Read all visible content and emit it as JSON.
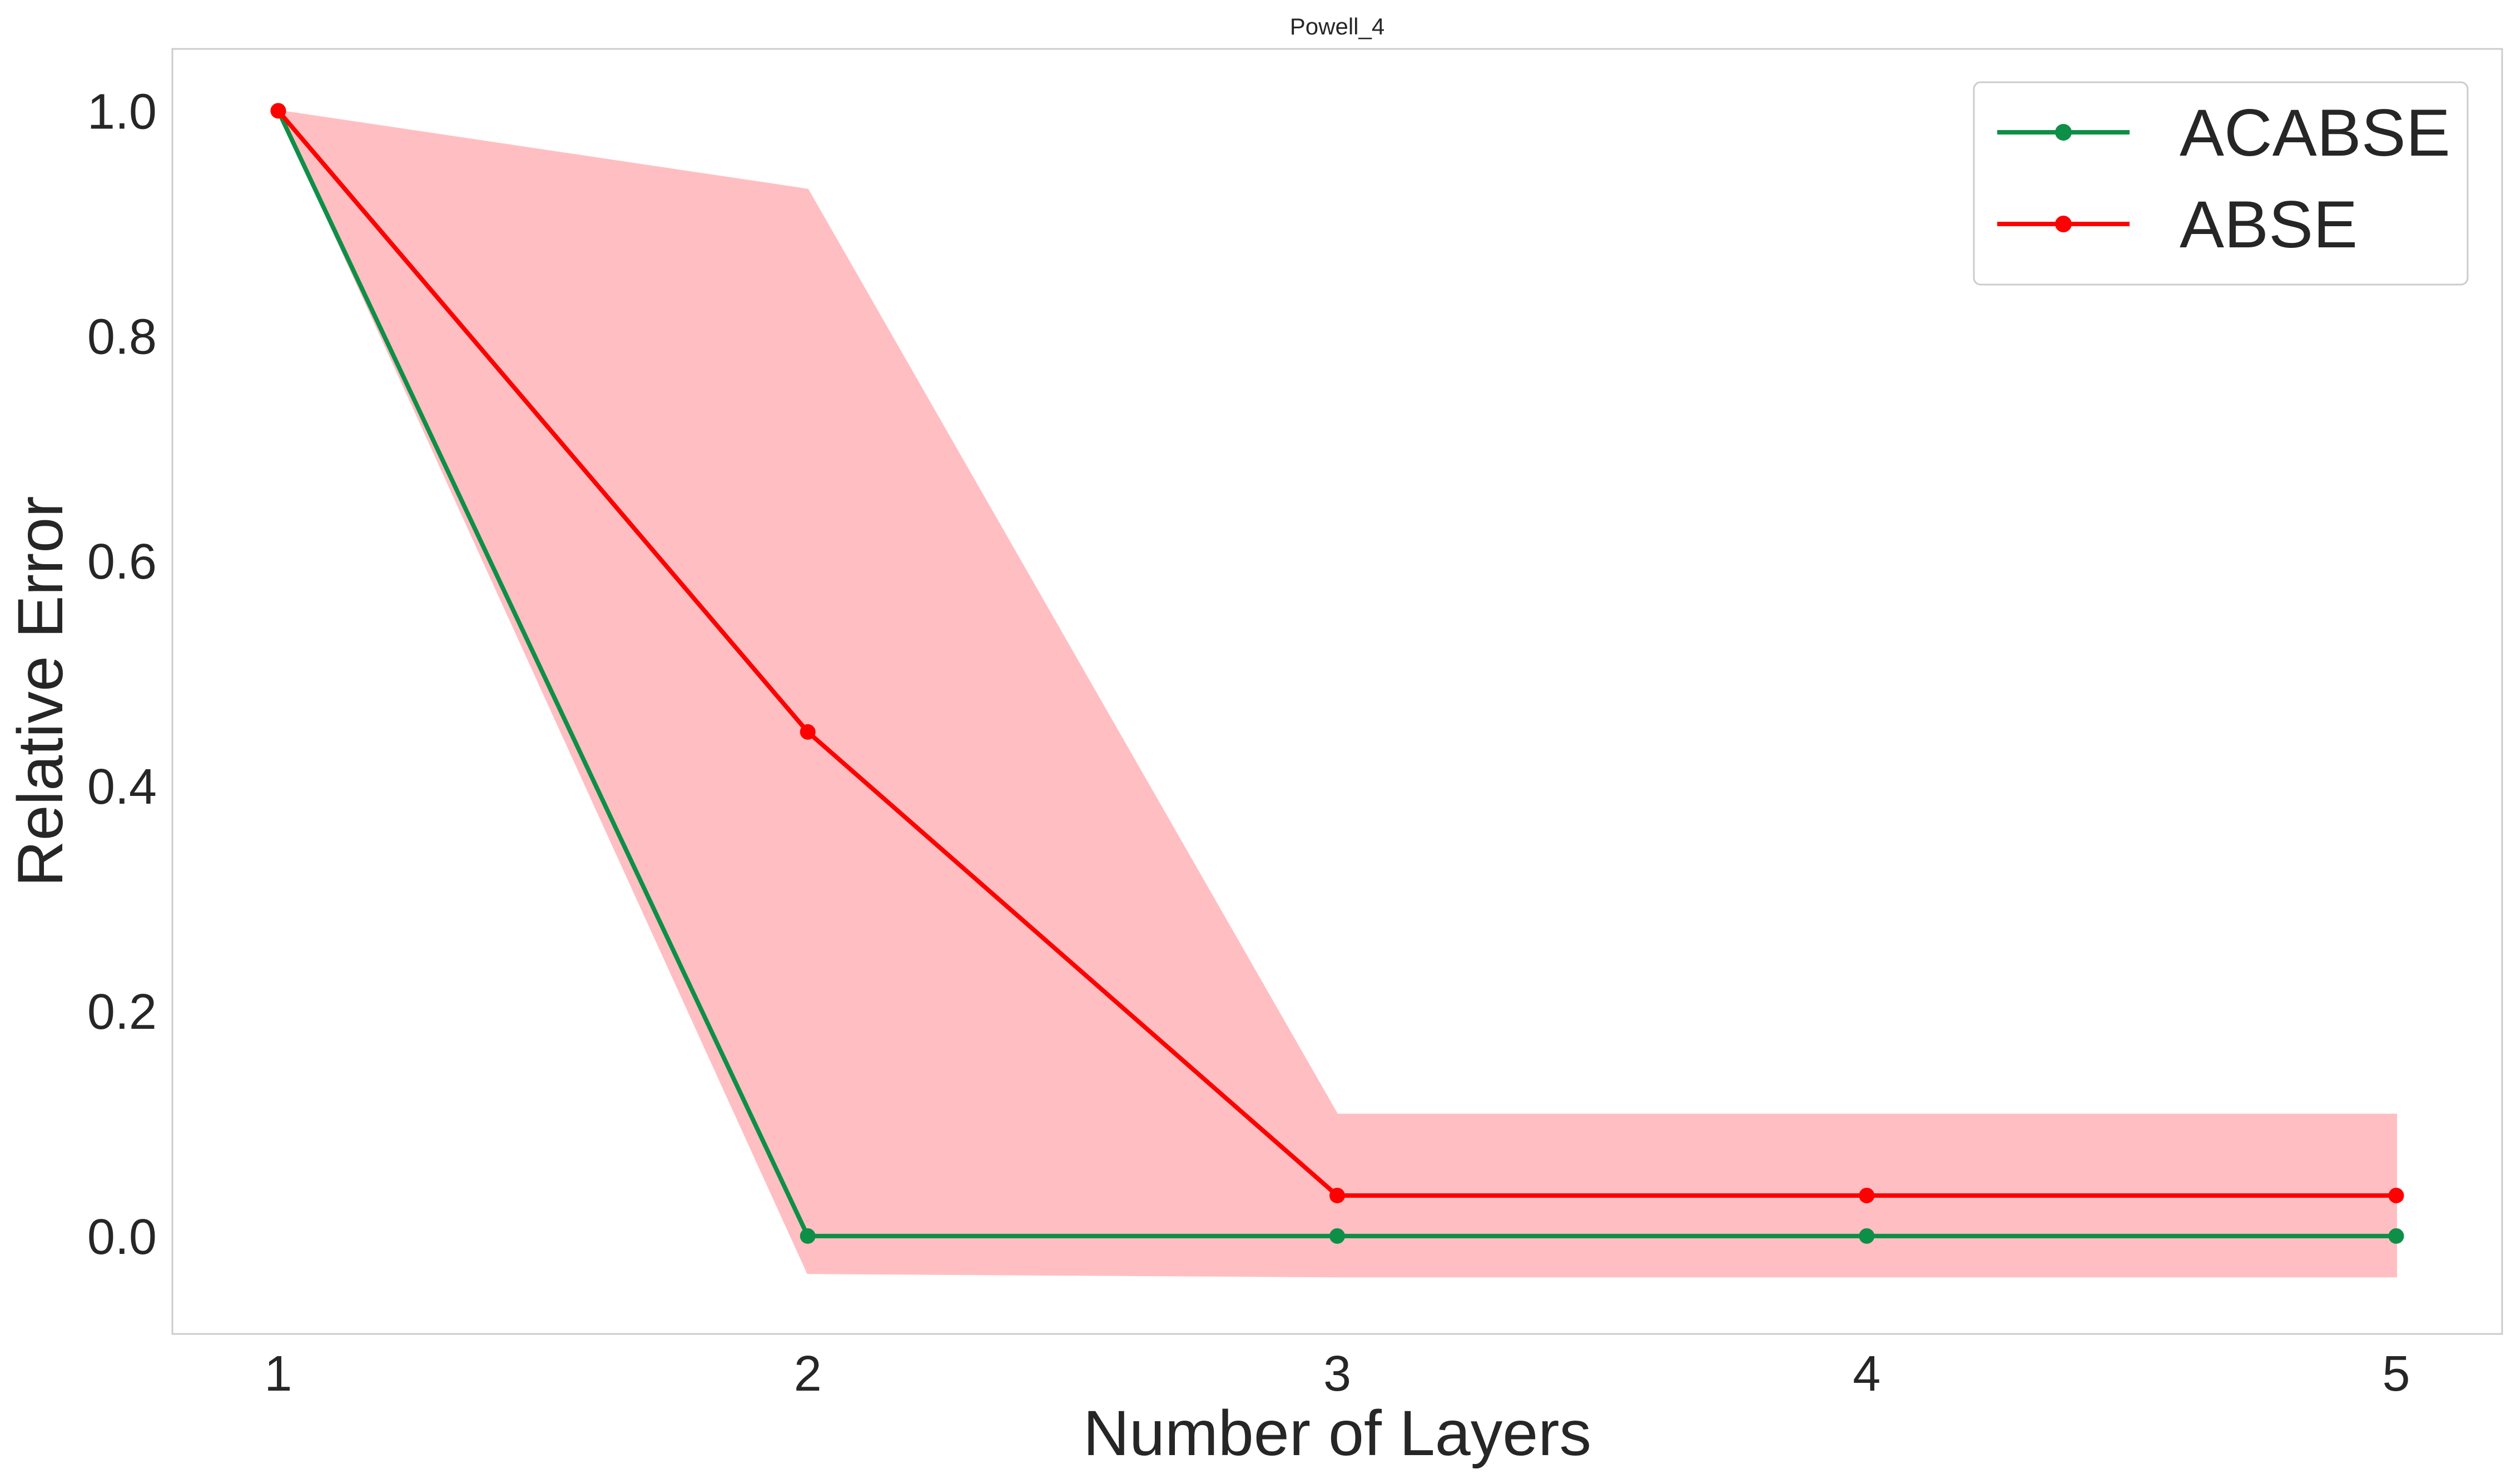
{
  "chart_data": {
    "type": "line",
    "title": "Powell_4",
    "xlabel": "Number of Layers",
    "ylabel": "Relative Error",
    "x": [
      1,
      2,
      3,
      4,
      5
    ],
    "xticks": [
      "1",
      "2",
      "3",
      "4",
      "5"
    ],
    "yticks": [
      "0.0",
      "0.2",
      "0.4",
      "0.6",
      "0.8",
      "1.0"
    ],
    "ytick_values": [
      0.0,
      0.2,
      0.4,
      0.6,
      0.8,
      1.0
    ],
    "xlim": [
      0.8,
      5.2
    ],
    "ylim": [
      -0.087,
      1.055
    ],
    "grid": false,
    "legend_position": "top-right",
    "series": [
      {
        "name": "ACABSE",
        "color": "#0d8f47",
        "marker": "circle",
        "values": [
          1.0,
          0.0,
          0.0,
          0.0,
          0.0
        ]
      },
      {
        "name": "ABSE",
        "color": "#ff0000",
        "marker": "circle",
        "values": [
          1.0,
          0.448,
          0.036,
          0.036,
          0.036
        ],
        "band": {
          "color": "#ffbfc2",
          "lower": [
            1.0,
            -0.033,
            -0.036,
            -0.036,
            -0.036
          ],
          "upper": [
            1.0,
            0.93,
            0.108,
            0.108,
            0.108
          ]
        }
      }
    ]
  }
}
